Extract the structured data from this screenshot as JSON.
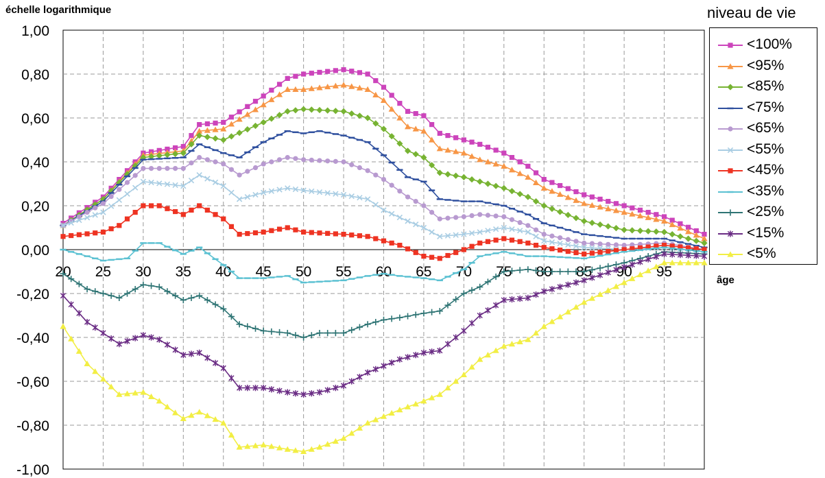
{
  "chart_data": {
    "type": "line",
    "ylabel": "échelle logarithmique",
    "xlabel": "âge",
    "legend_title": "niveau de vie",
    "legend_position": "right",
    "grid": true,
    "ylim": [
      -1.0,
      1.0
    ],
    "xlim": [
      20,
      100
    ],
    "yticks": [
      "1,00",
      "0,80",
      "0,60",
      "0,40",
      "0,20",
      "0,00",
      "-0,20",
      "-0,40",
      "-0,60",
      "-0,80",
      "-1,00"
    ],
    "xticks": [
      "20",
      "25",
      "30",
      "35",
      "40",
      "45",
      "50",
      "55",
      "60",
      "65",
      "70",
      "75",
      "80",
      "85",
      "90",
      "95"
    ],
    "series": [
      {
        "name": "<100%",
        "color": "#cc44bb",
        "marker": "square",
        "points": [
          [
            20,
            0.12
          ],
          [
            25,
            0.24
          ],
          [
            30,
            0.44
          ],
          [
            35,
            0.47
          ],
          [
            37,
            0.57
          ],
          [
            40,
            0.58
          ],
          [
            45,
            0.7
          ],
          [
            48,
            0.78
          ],
          [
            50,
            0.8
          ],
          [
            55,
            0.82
          ],
          [
            58,
            0.8
          ],
          [
            60,
            0.74
          ],
          [
            63,
            0.63
          ],
          [
            65,
            0.61
          ],
          [
            67,
            0.53
          ],
          [
            70,
            0.5
          ],
          [
            72,
            0.48
          ],
          [
            75,
            0.44
          ],
          [
            78,
            0.38
          ],
          [
            80,
            0.32
          ],
          [
            85,
            0.25
          ],
          [
            90,
            0.2
          ],
          [
            95,
            0.15
          ],
          [
            100,
            0.07
          ]
        ]
      },
      {
        "name": "<95%",
        "color": "#f79646",
        "marker": "triangle",
        "points": [
          [
            20,
            0.11
          ],
          [
            25,
            0.23
          ],
          [
            30,
            0.43
          ],
          [
            35,
            0.45
          ],
          [
            37,
            0.54
          ],
          [
            40,
            0.55
          ],
          [
            45,
            0.66
          ],
          [
            48,
            0.73
          ],
          [
            50,
            0.73
          ],
          [
            55,
            0.75
          ],
          [
            58,
            0.73
          ],
          [
            60,
            0.68
          ],
          [
            63,
            0.56
          ],
          [
            65,
            0.54
          ],
          [
            67,
            0.46
          ],
          [
            70,
            0.44
          ],
          [
            72,
            0.41
          ],
          [
            75,
            0.38
          ],
          [
            78,
            0.33
          ],
          [
            80,
            0.28
          ],
          [
            85,
            0.21
          ],
          [
            90,
            0.17
          ],
          [
            95,
            0.13
          ],
          [
            100,
            0.05
          ]
        ]
      },
      {
        "name": "<85%",
        "color": "#77b332",
        "marker": "diamond",
        "points": [
          [
            20,
            0.11
          ],
          [
            25,
            0.23
          ],
          [
            30,
            0.42
          ],
          [
            35,
            0.44
          ],
          [
            37,
            0.52
          ],
          [
            40,
            0.5
          ],
          [
            45,
            0.58
          ],
          [
            48,
            0.63
          ],
          [
            50,
            0.64
          ],
          [
            55,
            0.63
          ],
          [
            58,
            0.6
          ],
          [
            60,
            0.55
          ],
          [
            63,
            0.45
          ],
          [
            65,
            0.42
          ],
          [
            67,
            0.35
          ],
          [
            70,
            0.33
          ],
          [
            72,
            0.31
          ],
          [
            75,
            0.28
          ],
          [
            78,
            0.24
          ],
          [
            80,
            0.2
          ],
          [
            85,
            0.13
          ],
          [
            90,
            0.09
          ],
          [
            95,
            0.08
          ],
          [
            100,
            0.03
          ]
        ]
      },
      {
        "name": "<75%",
        "color": "#2e4f9e",
        "marker": "dash",
        "points": [
          [
            20,
            0.11
          ],
          [
            25,
            0.22
          ],
          [
            30,
            0.41
          ],
          [
            35,
            0.42
          ],
          [
            37,
            0.48
          ],
          [
            40,
            0.44
          ],
          [
            42,
            0.42
          ],
          [
            45,
            0.49
          ],
          [
            48,
            0.54
          ],
          [
            50,
            0.53
          ],
          [
            52,
            0.54
          ],
          [
            55,
            0.52
          ],
          [
            58,
            0.49
          ],
          [
            60,
            0.43
          ],
          [
            63,
            0.33
          ],
          [
            65,
            0.31
          ],
          [
            67,
            0.23
          ],
          [
            70,
            0.22
          ],
          [
            72,
            0.22
          ],
          [
            75,
            0.2
          ],
          [
            78,
            0.16
          ],
          [
            80,
            0.12
          ],
          [
            85,
            0.07
          ],
          [
            90,
            0.05
          ],
          [
            95,
            0.05
          ],
          [
            100,
            0.01
          ]
        ]
      },
      {
        "name": "<65%",
        "color": "#b89ad0",
        "marker": "circle",
        "points": [
          [
            20,
            0.11
          ],
          [
            25,
            0.21
          ],
          [
            30,
            0.37
          ],
          [
            35,
            0.37
          ],
          [
            37,
            0.42
          ],
          [
            40,
            0.39
          ],
          [
            42,
            0.34
          ],
          [
            45,
            0.39
          ],
          [
            48,
            0.42
          ],
          [
            50,
            0.41
          ],
          [
            55,
            0.4
          ],
          [
            58,
            0.36
          ],
          [
            60,
            0.32
          ],
          [
            63,
            0.24
          ],
          [
            65,
            0.2
          ],
          [
            67,
            0.14
          ],
          [
            70,
            0.15
          ],
          [
            72,
            0.16
          ],
          [
            75,
            0.15
          ],
          [
            78,
            0.11
          ],
          [
            80,
            0.07
          ],
          [
            85,
            0.03
          ],
          [
            90,
            0.02
          ],
          [
            95,
            0.03
          ],
          [
            100,
            0.0
          ]
        ]
      },
      {
        "name": "<55%",
        "color": "#a9cde3",
        "marker": "x",
        "points": [
          [
            20,
            0.11
          ],
          [
            25,
            0.17
          ],
          [
            30,
            0.31
          ],
          [
            35,
            0.29
          ],
          [
            37,
            0.34
          ],
          [
            40,
            0.29
          ],
          [
            42,
            0.23
          ],
          [
            45,
            0.26
          ],
          [
            48,
            0.28
          ],
          [
            50,
            0.27
          ],
          [
            55,
            0.25
          ],
          [
            58,
            0.23
          ],
          [
            60,
            0.18
          ],
          [
            63,
            0.13
          ],
          [
            65,
            0.1
          ],
          [
            67,
            0.06
          ],
          [
            70,
            0.07
          ],
          [
            72,
            0.08
          ],
          [
            75,
            0.1
          ],
          [
            78,
            0.08
          ],
          [
            80,
            0.04
          ],
          [
            85,
            0.01
          ],
          [
            90,
            0.0
          ],
          [
            95,
            0.01
          ],
          [
            100,
            -0.01
          ]
        ]
      },
      {
        "name": "<45%",
        "color": "#ee3322",
        "marker": "square",
        "points": [
          [
            20,
            0.06
          ],
          [
            25,
            0.08
          ],
          [
            27,
            0.11
          ],
          [
            30,
            0.2
          ],
          [
            32,
            0.2
          ],
          [
            35,
            0.16
          ],
          [
            37,
            0.2
          ],
          [
            40,
            0.14
          ],
          [
            42,
            0.07
          ],
          [
            45,
            0.08
          ],
          [
            48,
            0.1
          ],
          [
            50,
            0.08
          ],
          [
            55,
            0.07
          ],
          [
            58,
            0.06
          ],
          [
            60,
            0.04
          ],
          [
            62,
            0.02
          ],
          [
            65,
            -0.03
          ],
          [
            67,
            -0.04
          ],
          [
            70,
            0.0
          ],
          [
            72,
            0.03
          ],
          [
            75,
            0.05
          ],
          [
            78,
            0.03
          ],
          [
            80,
            0.01
          ],
          [
            85,
            -0.02
          ],
          [
            90,
            0.0
          ],
          [
            95,
            0.02
          ],
          [
            100,
            0.0
          ]
        ]
      },
      {
        "name": "<35%",
        "color": "#5bc1d2",
        "marker": "dash",
        "points": [
          [
            20,
            0.0
          ],
          [
            25,
            -0.05
          ],
          [
            28,
            -0.04
          ],
          [
            30,
            0.03
          ],
          [
            32,
            0.03
          ],
          [
            35,
            -0.02
          ],
          [
            37,
            0.01
          ],
          [
            40,
            -0.07
          ],
          [
            42,
            -0.13
          ],
          [
            45,
            -0.13
          ],
          [
            48,
            -0.12
          ],
          [
            50,
            -0.15
          ],
          [
            55,
            -0.14
          ],
          [
            58,
            -0.12
          ],
          [
            60,
            -0.11
          ],
          [
            62,
            -0.12
          ],
          [
            65,
            -0.13
          ],
          [
            67,
            -0.14
          ],
          [
            70,
            -0.09
          ],
          [
            72,
            -0.03
          ],
          [
            75,
            -0.01
          ],
          [
            78,
            -0.03
          ],
          [
            80,
            -0.03
          ],
          [
            85,
            -0.04
          ],
          [
            90,
            -0.01
          ],
          [
            95,
            0.01
          ],
          [
            100,
            -0.01
          ]
        ]
      },
      {
        "name": "<25%",
        "color": "#2e7474",
        "marker": "plus",
        "points": [
          [
            20,
            -0.11
          ],
          [
            23,
            -0.18
          ],
          [
            25,
            -0.2
          ],
          [
            27,
            -0.22
          ],
          [
            30,
            -0.16
          ],
          [
            32,
            -0.17
          ],
          [
            35,
            -0.23
          ],
          [
            37,
            -0.21
          ],
          [
            40,
            -0.27
          ],
          [
            42,
            -0.34
          ],
          [
            45,
            -0.37
          ],
          [
            48,
            -0.38
          ],
          [
            50,
            -0.4
          ],
          [
            52,
            -0.38
          ],
          [
            55,
            -0.38
          ],
          [
            58,
            -0.34
          ],
          [
            60,
            -0.32
          ],
          [
            62,
            -0.31
          ],
          [
            65,
            -0.29
          ],
          [
            67,
            -0.28
          ],
          [
            70,
            -0.2
          ],
          [
            72,
            -0.17
          ],
          [
            75,
            -0.1
          ],
          [
            78,
            -0.09
          ],
          [
            80,
            -0.1
          ],
          [
            85,
            -0.1
          ],
          [
            90,
            -0.06
          ],
          [
            95,
            -0.01
          ],
          [
            100,
            -0.02
          ]
        ]
      },
      {
        "name": "<15%",
        "color": "#6a2c84",
        "marker": "star",
        "points": [
          [
            20,
            -0.21
          ],
          [
            23,
            -0.33
          ],
          [
            25,
            -0.38
          ],
          [
            27,
            -0.43
          ],
          [
            30,
            -0.39
          ],
          [
            32,
            -0.41
          ],
          [
            35,
            -0.48
          ],
          [
            37,
            -0.47
          ],
          [
            40,
            -0.54
          ],
          [
            42,
            -0.63
          ],
          [
            45,
            -0.63
          ],
          [
            48,
            -0.65
          ],
          [
            50,
            -0.66
          ],
          [
            52,
            -0.65
          ],
          [
            55,
            -0.62
          ],
          [
            58,
            -0.56
          ],
          [
            60,
            -0.53
          ],
          [
            62,
            -0.5
          ],
          [
            65,
            -0.47
          ],
          [
            67,
            -0.46
          ],
          [
            70,
            -0.37
          ],
          [
            72,
            -0.3
          ],
          [
            75,
            -0.23
          ],
          [
            78,
            -0.22
          ],
          [
            80,
            -0.19
          ],
          [
            85,
            -0.14
          ],
          [
            90,
            -0.08
          ],
          [
            95,
            -0.02
          ],
          [
            100,
            -0.03
          ]
        ]
      },
      {
        "name": "<5%",
        "color": "#f2ee44",
        "marker": "triangle",
        "points": [
          [
            20,
            -0.35
          ],
          [
            23,
            -0.52
          ],
          [
            25,
            -0.59
          ],
          [
            27,
            -0.66
          ],
          [
            30,
            -0.65
          ],
          [
            32,
            -0.69
          ],
          [
            35,
            -0.77
          ],
          [
            37,
            -0.74
          ],
          [
            40,
            -0.79
          ],
          [
            42,
            -0.9
          ],
          [
            45,
            -0.89
          ],
          [
            48,
            -0.91
          ],
          [
            50,
            -0.92
          ],
          [
            52,
            -0.9
          ],
          [
            55,
            -0.86
          ],
          [
            58,
            -0.79
          ],
          [
            60,
            -0.76
          ],
          [
            62,
            -0.73
          ],
          [
            65,
            -0.69
          ],
          [
            67,
            -0.66
          ],
          [
            70,
            -0.57
          ],
          [
            72,
            -0.5
          ],
          [
            75,
            -0.44
          ],
          [
            78,
            -0.41
          ],
          [
            80,
            -0.35
          ],
          [
            85,
            -0.24
          ],
          [
            90,
            -0.15
          ],
          [
            95,
            -0.06
          ],
          [
            100,
            -0.06
          ]
        ]
      }
    ]
  }
}
